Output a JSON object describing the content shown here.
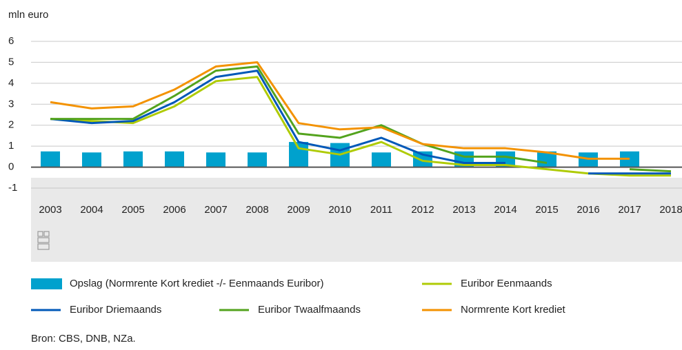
{
  "chart_data": {
    "type": "combo",
    "y_label": "mln euro",
    "source": "Bron: CBS, DNB, NZa.",
    "categories": [
      "2003",
      "2004",
      "2005",
      "2006",
      "2007",
      "2008",
      "2009",
      "2010",
      "2011",
      "2012",
      "2013",
      "2014",
      "2015",
      "2016",
      "2017",
      "2018"
    ],
    "ylim": [
      -1,
      6
    ],
    "yticks": [
      -1,
      0,
      1,
      2,
      3,
      4,
      5,
      6
    ],
    "grid": true,
    "series": [
      {
        "name": "Opslag (Normrente Kort krediet -/- Eenmaands Euribor)",
        "type": "bar",
        "color": "#00a1cd",
        "values": [
          0.75,
          0.7,
          0.75,
          0.75,
          0.7,
          0.7,
          1.2,
          1.15,
          0.7,
          0.75,
          0.75,
          0.75,
          0.75,
          0.7,
          0.75,
          null
        ]
      },
      {
        "name": "Euribor Eenmaands",
        "type": "line",
        "color": "#afcb05",
        "values": [
          2.3,
          2.2,
          2.1,
          2.9,
          4.1,
          4.3,
          0.9,
          0.6,
          1.2,
          0.3,
          0.1,
          0.1,
          -0.1,
          -0.3,
          -0.4,
          -0.4
        ]
      },
      {
        "name": "Euribor Driemaands",
        "type": "line",
        "color": "#0058b8",
        "values": [
          2.3,
          2.1,
          2.2,
          3.1,
          4.3,
          4.6,
          1.2,
          0.8,
          1.4,
          0.6,
          0.2,
          0.2,
          null,
          -0.3,
          -0.3,
          -0.3
        ]
      },
      {
        "name": "Euribor Twaalfmaands",
        "type": "line",
        "color": "#53a31d",
        "values": [
          2.3,
          2.3,
          2.3,
          3.4,
          4.6,
          4.8,
          1.6,
          1.4,
          2.0,
          1.1,
          0.5,
          0.5,
          0.2,
          null,
          -0.1,
          -0.2
        ]
      },
      {
        "name": "Normrente Kort krediet",
        "type": "line",
        "color": "#f39200",
        "values": [
          3.1,
          2.8,
          2.9,
          3.7,
          4.8,
          5.0,
          2.1,
          1.8,
          1.9,
          1.1,
          0.9,
          0.9,
          0.7,
          0.4,
          0.4,
          null
        ]
      }
    ]
  }
}
